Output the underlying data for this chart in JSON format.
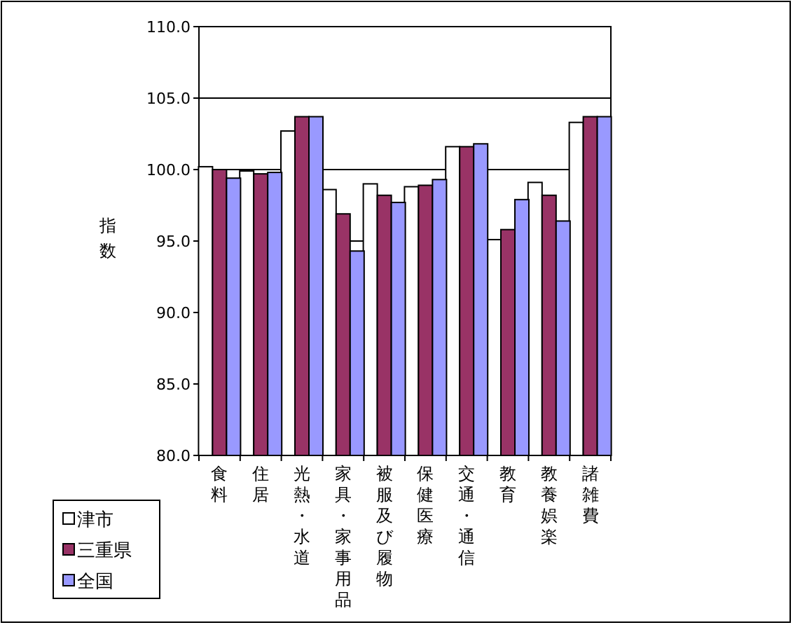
{
  "chart_data": {
    "type": "bar",
    "ylabel": "指数",
    "categories": [
      "食料",
      "住居",
      "光熱・水道",
      "家具・家事用品",
      "被服及び履物",
      "保健医療",
      "交通・通信",
      "教育",
      "教養娯楽",
      "諸雑費"
    ],
    "series": [
      {
        "name": "津市",
        "color": "#ffffff",
        "values": [
          100.2,
          99.9,
          102.7,
          98.6,
          99.0,
          98.8,
          101.6,
          95.1,
          99.1,
          103.3
        ]
      },
      {
        "name": "三重県",
        "color": "#993366",
        "values": [
          100.0,
          99.7,
          103.7,
          96.9,
          98.2,
          98.9,
          101.6,
          95.8,
          98.2,
          103.7
        ]
      },
      {
        "name": "全国",
        "color": "#9999ff",
        "values": [
          99.4,
          99.8,
          103.7,
          94.3,
          97.7,
          99.3,
          101.8,
          97.9,
          96.4,
          103.7
        ]
      }
    ],
    "ylim": [
      80,
      110
    ],
    "yticks": [
      {
        "value": 80,
        "label": "80.0"
      },
      {
        "value": 85,
        "label": "85.0"
      },
      {
        "value": 90,
        "label": "90.0"
      },
      {
        "value": 95,
        "label": "95.0"
      },
      {
        "value": 100,
        "label": "100.0"
      },
      {
        "value": 105,
        "label": "105.0"
      },
      {
        "value": 110,
        "label": "110.0"
      }
    ],
    "grid": "y",
    "legend": "bottom left"
  }
}
